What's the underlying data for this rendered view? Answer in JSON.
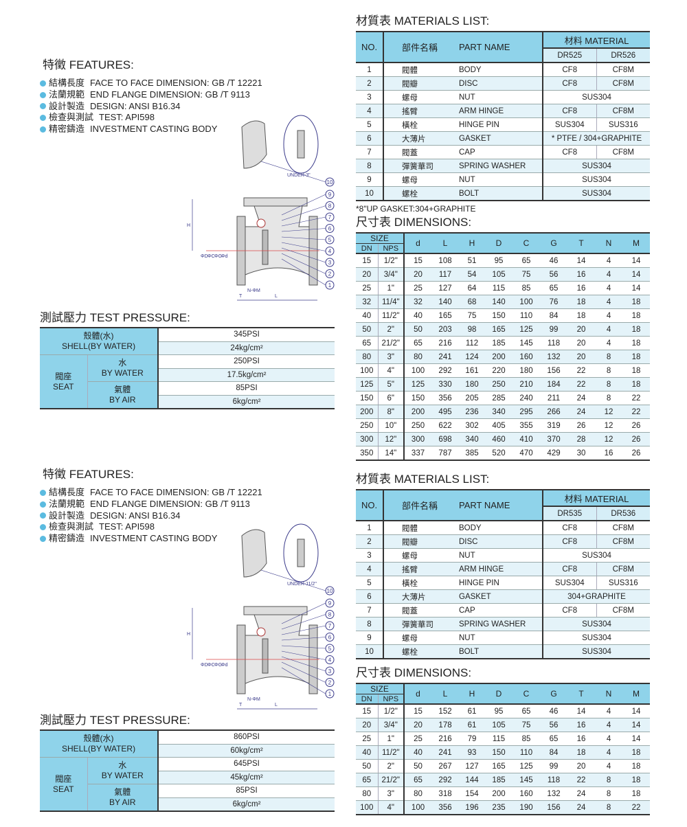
{
  "sections": [
    {
      "features": {
        "title": "特徵  FEATURES:",
        "items": [
          {
            "zh": "結構長度",
            "en": "FACE TO FACE DIMENSION:  GB /T 12221"
          },
          {
            "zh": "法蘭規範",
            "en": "END FLANGE DIMENSION: GB /T 9113"
          },
          {
            "zh": "設計製造",
            "en": "DESIGN: ANSI B16.34"
          },
          {
            "zh": "檢查與測試",
            "en": "TEST: API598"
          },
          {
            "zh": "精密鑄造",
            "en": "INVESTMENT CASTING BODY"
          }
        ]
      },
      "diagram": {
        "detail_label": "UNDER-3\"",
        "callouts": [
          "10",
          "9",
          "8",
          "7",
          "6",
          "5",
          "4",
          "3",
          "2",
          "1"
        ],
        "dims": [
          "H",
          "ΦD",
          "ΦC",
          "ΦG",
          "Φd",
          "T",
          "N-ΦM",
          "L"
        ]
      },
      "test_pressure": {
        "title": "測試壓力  TEST PRESSURE:",
        "shell_zh": "殼體(水)",
        "shell_en": "SHELL(BY WATER)",
        "seat_zh": "閥座",
        "seat_en": "SEAT",
        "water_zh": "水",
        "water_en": "BY WATER",
        "air_zh": "氣體",
        "air_en": "BY AIR",
        "values": [
          "345PSI",
          "24kg/cm²",
          "250PSI",
          "17.5kg/cm²",
          "85PSI",
          "6kg/cm²"
        ]
      },
      "materials": {
        "title": "材質表  MATERIALS LIST:",
        "headers": {
          "no": "NO.",
          "zh": "部件名稱",
          "en": "PART NAME",
          "material": "材料  MATERIAL",
          "m1": "DR525",
          "m2": "DR526"
        },
        "rows": [
          {
            "no": "1",
            "zh": "閥體",
            "en": "BODY",
            "m1": "CF8",
            "m2": "CF8M"
          },
          {
            "no": "2",
            "zh": "閥瓣",
            "en": "DISC",
            "m1": "CF8",
            "m2": "CF8M"
          },
          {
            "no": "3",
            "zh": "螺母",
            "en": "NUT",
            "m1": "SUS304",
            "m2": null
          },
          {
            "no": "4",
            "zh": "搖臂",
            "en": "ARM HINGE",
            "m1": "CF8",
            "m2": "CF8M"
          },
          {
            "no": "5",
            "zh": "橫栓",
            "en": "HINGE PIN",
            "m1": "SUS304",
            "m2": "SUS316"
          },
          {
            "no": "6",
            "zh": "大薄片",
            "en": "GASKET",
            "m1": "* PTFE / 304+GRAPHITE",
            "m2": null
          },
          {
            "no": "7",
            "zh": "閥蓋",
            "en": "CAP",
            "m1": "CF8",
            "m2": "CF8M"
          },
          {
            "no": "8",
            "zh": "彈簧華司",
            "en": "SPRING WASHER",
            "m1": "SUS304",
            "m2": null
          },
          {
            "no": "9",
            "zh": "螺母",
            "en": "NUT",
            "m1": "SUS304",
            "m2": null
          },
          {
            "no": "10",
            "zh": "螺栓",
            "en": "BOLT",
            "m1": "SUS304",
            "m2": null
          }
        ],
        "note": "*8\"UP GASKET:304+GRAPHITE"
      },
      "dimensions": {
        "title": "尺寸表  DIMENSIONS:",
        "size_label": "SIZE",
        "columns": [
          "DN",
          "NPS",
          "d",
          "L",
          "H",
          "D",
          "C",
          "G",
          "T",
          "N",
          "M"
        ],
        "rows": [
          [
            "15",
            "1/2\"",
            "15",
            "108",
            "51",
            "95",
            "65",
            "46",
            "14",
            "4",
            "14"
          ],
          [
            "20",
            "3/4\"",
            "20",
            "117",
            "54",
            "105",
            "75",
            "56",
            "16",
            "4",
            "14"
          ],
          [
            "25",
            "1\"",
            "25",
            "127",
            "64",
            "115",
            "85",
            "65",
            "16",
            "4",
            "14"
          ],
          [
            "32",
            "11/4\"",
            "32",
            "140",
            "68",
            "140",
            "100",
            "76",
            "18",
            "4",
            "18"
          ],
          [
            "40",
            "11/2\"",
            "40",
            "165",
            "75",
            "150",
            "110",
            "84",
            "18",
            "4",
            "18"
          ],
          [
            "50",
            "2\"",
            "50",
            "203",
            "98",
            "165",
            "125",
            "99",
            "20",
            "4",
            "18"
          ],
          [
            "65",
            "21/2\"",
            "65",
            "216",
            "112",
            "185",
            "145",
            "118",
            "20",
            "4",
            "18"
          ],
          [
            "80",
            "3\"",
            "80",
            "241",
            "124",
            "200",
            "160",
            "132",
            "20",
            "8",
            "18"
          ],
          [
            "100",
            "4\"",
            "100",
            "292",
            "161",
            "220",
            "180",
            "156",
            "22",
            "8",
            "18"
          ],
          [
            "125",
            "5\"",
            "125",
            "330",
            "180",
            "250",
            "210",
            "184",
            "22",
            "8",
            "18"
          ],
          [
            "150",
            "6\"",
            "150",
            "356",
            "205",
            "285",
            "240",
            "211",
            "24",
            "8",
            "22"
          ],
          [
            "200",
            "8\"",
            "200",
            "495",
            "236",
            "340",
            "295",
            "266",
            "24",
            "12",
            "22"
          ],
          [
            "250",
            "10\"",
            "250",
            "622",
            "302",
            "405",
            "355",
            "319",
            "26",
            "12",
            "26"
          ],
          [
            "300",
            "12\"",
            "300",
            "698",
            "340",
            "460",
            "410",
            "370",
            "28",
            "12",
            "26"
          ],
          [
            "350",
            "14\"",
            "337",
            "787",
            "385",
            "520",
            "470",
            "429",
            "30",
            "16",
            "26"
          ]
        ]
      }
    },
    {
      "features": {
        "title": "特徵  FEATURES:",
        "items": [
          {
            "zh": "結構長度",
            "en": "FACE TO FACE DIMENSION:  GB /T 12221"
          },
          {
            "zh": "法蘭規範",
            "en": "END FLANGE DIMENSION: GB /T 9113"
          },
          {
            "zh": "設計製造",
            "en": "DESIGN: ANSI B16.34"
          },
          {
            "zh": "檢查與測試",
            "en": "TEST: API598"
          },
          {
            "zh": "精密鑄造",
            "en": "INVESTMENT CASTING BODY"
          }
        ]
      },
      "diagram": {
        "detail_label": "UNDER-11/2\"",
        "callouts": [
          "10",
          "9",
          "8",
          "7",
          "6",
          "5",
          "4",
          "3",
          "2",
          "1"
        ],
        "dims": [
          "H",
          "ΦD",
          "ΦC",
          "ΦG",
          "Φd",
          "T",
          "N-ΦM",
          "L"
        ]
      },
      "test_pressure": {
        "title": "測試壓力  TEST PRESSURE:",
        "shell_zh": "殼體(水)",
        "shell_en": "SHELL(BY WATER)",
        "seat_zh": "閥座",
        "seat_en": "SEAT",
        "water_zh": "水",
        "water_en": "BY WATER",
        "air_zh": "氣體",
        "air_en": "BY AIR",
        "values": [
          "860PSI",
          "60kg/cm²",
          "645PSI",
          "45kg/cm²",
          "85PSI",
          "6kg/cm²"
        ]
      },
      "materials": {
        "title": "材質表  MATERIALS LIST:",
        "headers": {
          "no": "NO.",
          "zh": "部件名稱",
          "en": "PART NAME",
          "material": "材料  MATERIAL",
          "m1": "DR535",
          "m2": "DR536"
        },
        "rows": [
          {
            "no": "1",
            "zh": "閥體",
            "en": "BODY",
            "m1": "CF8",
            "m2": "CF8M"
          },
          {
            "no": "2",
            "zh": "閥瓣",
            "en": "DISC",
            "m1": "CF8",
            "m2": "CF8M"
          },
          {
            "no": "3",
            "zh": "螺母",
            "en": "NUT",
            "m1": "SUS304",
            "m2": null
          },
          {
            "no": "4",
            "zh": "搖臂",
            "en": "ARM HINGE",
            "m1": "CF8",
            "m2": "CF8M"
          },
          {
            "no": "5",
            "zh": "橫栓",
            "en": "HINGE PIN",
            "m1": "SUS304",
            "m2": "SUS316"
          },
          {
            "no": "6",
            "zh": "大薄片",
            "en": "GASKET",
            "m1": "304+GRAPHITE",
            "m2": null
          },
          {
            "no": "7",
            "zh": "閥蓋",
            "en": "CAP",
            "m1": "CF8",
            "m2": "CF8M"
          },
          {
            "no": "8",
            "zh": "彈簧華司",
            "en": "SPRING WASHER",
            "m1": "SUS304",
            "m2": null
          },
          {
            "no": "9",
            "zh": "螺母",
            "en": "NUT",
            "m1": "SUS304",
            "m2": null
          },
          {
            "no": "10",
            "zh": "螺栓",
            "en": "BOLT",
            "m1": "SUS304",
            "m2": null
          }
        ]
      },
      "dimensions": {
        "title": "尺寸表  DIMENSIONS:",
        "size_label": "SIZE",
        "columns": [
          "DN",
          "NPS",
          "d",
          "L",
          "H",
          "D",
          "C",
          "G",
          "T",
          "N",
          "M"
        ],
        "rows": [
          [
            "15",
            "1/2\"",
            "15",
            "152",
            "61",
            "95",
            "65",
            "46",
            "14",
            "4",
            "14"
          ],
          [
            "20",
            "3/4\"",
            "20",
            "178",
            "61",
            "105",
            "75",
            "56",
            "16",
            "4",
            "14"
          ],
          [
            "25",
            "1\"",
            "25",
            "216",
            "79",
            "115",
            "85",
            "65",
            "16",
            "4",
            "14"
          ],
          [
            "40",
            "11/2\"",
            "40",
            "241",
            "93",
            "150",
            "110",
            "84",
            "18",
            "4",
            "18"
          ],
          [
            "50",
            "2\"",
            "50",
            "267",
            "127",
            "165",
            "125",
            "99",
            "20",
            "4",
            "18"
          ],
          [
            "65",
            "21/2\"",
            "65",
            "292",
            "144",
            "185",
            "145",
            "118",
            "22",
            "8",
            "18"
          ],
          [
            "80",
            "3\"",
            "80",
            "318",
            "154",
            "200",
            "160",
            "132",
            "24",
            "8",
            "18"
          ],
          [
            "100",
            "4\"",
            "100",
            "356",
            "196",
            "235",
            "190",
            "156",
            "24",
            "8",
            "22"
          ]
        ]
      }
    }
  ],
  "colors": {
    "header": "#8fd3ea",
    "alt_row": "#e4f3f9",
    "bullet": "#5bbbe0",
    "drawing": "#3a3a8a"
  }
}
